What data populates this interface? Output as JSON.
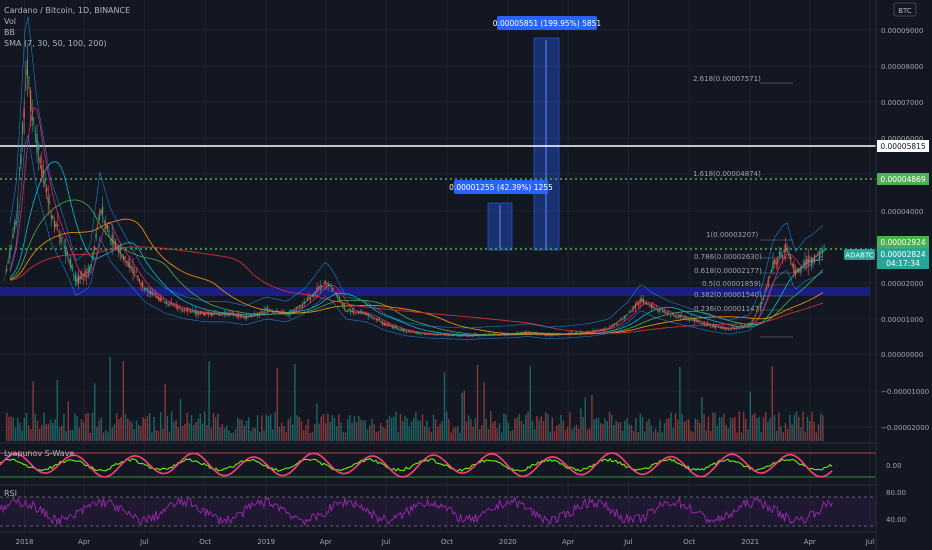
{
  "header": {
    "symbol_line": "Cardano / Bitcoin, 1D, BINANCE",
    "indicators": [
      "Vol",
      "BB",
      "SMA (7, 30, 50, 100, 200)"
    ],
    "currency_badge": "BTC"
  },
  "colors": {
    "background": "#131722",
    "grid": "#1e222d",
    "bull": "#26a69a",
    "bear": "#ef5350",
    "fib_dotted": "#4caf50",
    "support_band": "#1c1e8c",
    "measure_box": "#2962ff",
    "wave_pink": "#ff3d7f",
    "wave_green": "#76ff03",
    "rsi_purple": "#9c27b0"
  },
  "chart_data": [
    {
      "type": "line",
      "title": "Cardano / Bitcoin, 1D, BINANCE",
      "x_ticks": [
        "2018",
        "Apr",
        "Jul",
        "Oct",
        "2019",
        "Apr",
        "Jul",
        "Oct",
        "2020",
        "Apr",
        "Jul",
        "Oct",
        "2021",
        "Apr",
        "Jul"
      ],
      "y_ticks": [
        "0.00009000",
        "0.00008000",
        "0.00007000",
        "0.00006000",
        "0.00004000",
        "0.00002000",
        "0.00001000",
        "0.00000000",
        "−0.00001000",
        "−0.00002000"
      ],
      "ylim": [
        -2.2e-05,
        9.5e-05
      ],
      "series": [
        {
          "name": "ADABTC",
          "x": [
            "2017-12-01",
            "2017-12-20",
            "2018-01-04",
            "2018-01-20",
            "2018-02-10",
            "2018-03-01",
            "2018-03-20",
            "2018-04-10",
            "2018-04-25",
            "2018-05-10",
            "2018-06-01",
            "2018-07-01",
            "2018-08-01",
            "2018-09-01",
            "2018-10-01",
            "2018-11-01",
            "2018-12-01",
            "2019-01-01",
            "2019-02-01",
            "2019-03-01",
            "2019-04-01",
            "2019-04-15",
            "2019-05-01",
            "2019-06-01",
            "2019-07-01",
            "2019-08-01",
            "2019-09-01",
            "2019-10-01",
            "2019-11-01",
            "2019-12-01",
            "2020-01-01",
            "2020-02-01",
            "2020-03-01",
            "2020-04-01",
            "2020-05-01",
            "2020-06-01",
            "2020-07-01",
            "2020-07-20",
            "2020-08-05",
            "2020-09-01",
            "2020-10-01",
            "2020-11-01",
            "2020-12-01",
            "2021-01-01",
            "2021-01-20",
            "2021-02-05",
            "2021-02-25",
            "2021-03-10",
            "2021-03-25",
            "2021-04-05",
            "2021-04-22"
          ],
          "values": [
            2e-05,
            3.8e-05,
            7.8e-05,
            5.6e-05,
            3.8e-05,
            3e-05,
            2e-05,
            2.3e-05,
            4e-05,
            3.2e-05,
            2.6e-05,
            1.8e-05,
            1.4e-05,
            1.2e-05,
            1.1e-05,
            1.1e-05,
            1e-05,
            1.2e-05,
            1.1e-05,
            1.4e-05,
            2e-05,
            1.7e-05,
            1.2e-05,
            1.1e-05,
            8e-06,
            6.2e-06,
            5.5e-06,
            5.2e-06,
            5e-06,
            5.3e-06,
            5.5e-06,
            6e-06,
            5.2e-06,
            5.5e-06,
            6e-06,
            7e-06,
            1.1e-05,
            1.5e-05,
            1.3e-05,
            1.1e-05,
            9.5e-06,
            7.8e-06,
            6.8e-06,
            8e-06,
            1.5e-05,
            2.5e-05,
            2.9e-05,
            2.2e-05,
            2.5e-05,
            2.6e-05,
            2.82e-05
          ]
        }
      ],
      "horizontal_lines": [
        {
          "price_label": "0.00005815",
          "style": "solid",
          "color": "#ffffff"
        },
        {
          "price_label": "0.00004869",
          "style": "dotted",
          "color": "#4caf50"
        },
        {
          "price_label": "0.00002924",
          "style": "dotted",
          "color": "#4caf50"
        }
      ],
      "current_price": {
        "symbol": "ADABTC",
        "price": "0.00002824",
        "countdown": "04:17:34"
      },
      "fib_levels": [
        {
          "label": "2.618(0.00007571)"
        },
        {
          "label": "1.618(0.00004874)"
        },
        {
          "label": "1(0.00003207)"
        },
        {
          "label": "0.786(0.00002630)"
        },
        {
          "label": "0.618(0.00002177)"
        },
        {
          "label": "0.5(0.00001859)"
        },
        {
          "label": "0.382(0.00001540)"
        },
        {
          "label": "0.236(0.00001147)"
        }
      ],
      "measurements": [
        {
          "label": "0.00001255 (42.39%) 1255"
        },
        {
          "label": "0.00005851 (199.95%) 5851"
        }
      ]
    },
    {
      "type": "line",
      "title": "Lyapunov S-Wave",
      "y_ticks": [
        "0.00"
      ],
      "ylim": [
        -1,
        1
      ]
    },
    {
      "type": "line",
      "title": "RSI",
      "y_ticks": [
        "80.00",
        "40.00"
      ],
      "ylim": [
        20,
        90
      ]
    }
  ]
}
